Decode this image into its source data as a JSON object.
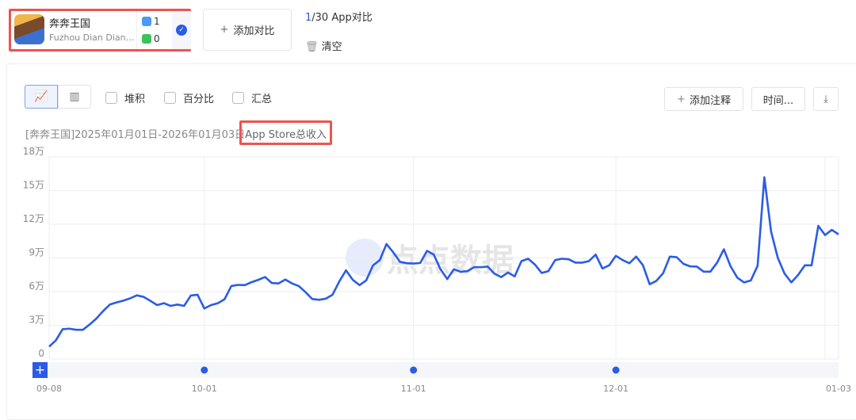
{
  "app": {
    "name": "奔奔王国",
    "developer": "Fuzhou Dian Dian Interactive",
    "ios_count": "1",
    "android_count": "0",
    "icon": "app-icon"
  },
  "header": {
    "add_compare": "添加对比",
    "count_current": "1",
    "count_rest": "/30 App对比",
    "clear": "清空"
  },
  "toolbar": {
    "stack": "堆积",
    "percent": "百分比",
    "summary": "汇总",
    "add_note": "添加注释",
    "time": "时间...",
    "line_icon": "line-chart-icon",
    "bar_icon": "bar-chart-icon",
    "download_icon": "download-icon"
  },
  "chart_title": {
    "prefix": "[奔奔王国]2025年01月01日-2026年01月03日",
    "metric": "App Store总收入"
  },
  "watermark": "点点数据",
  "colors": {
    "line": "#2b5ce6",
    "accent": "#2b5ce6",
    "highlight": "#ef5350"
  },
  "chart_data": {
    "type": "line",
    "ylim": [
      0,
      180000
    ],
    "yticks": [
      "0",
      "3万",
      "6万",
      "9万",
      "12万",
      "15万",
      "18万"
    ],
    "xtick_labels": [
      "09-08",
      "10-01",
      "11-01",
      "12-01",
      "01-03"
    ],
    "grid": true,
    "x": [
      "09-08",
      "09-09",
      "09-10",
      "09-11",
      "09-12",
      "09-13",
      "09-14",
      "09-15",
      "09-16",
      "09-17",
      "09-18",
      "09-19",
      "09-20",
      "09-21",
      "09-22",
      "09-23",
      "09-24",
      "09-25",
      "09-26",
      "09-27",
      "09-28",
      "09-29",
      "09-30",
      "10-01",
      "10-02",
      "10-03",
      "10-04",
      "10-05",
      "10-06",
      "10-07",
      "10-08",
      "10-09",
      "10-10",
      "10-11",
      "10-12",
      "10-13",
      "10-14",
      "10-15",
      "10-16",
      "10-17",
      "10-18",
      "10-19",
      "10-20",
      "10-21",
      "10-22",
      "10-23",
      "10-24",
      "10-25",
      "10-26",
      "10-27",
      "10-28",
      "10-29",
      "10-30",
      "10-31",
      "11-01",
      "11-02",
      "11-03",
      "11-04",
      "11-05",
      "11-06",
      "11-07",
      "11-08",
      "11-09",
      "11-10",
      "11-11",
      "11-12",
      "11-13",
      "11-14",
      "11-15",
      "11-16",
      "11-17",
      "11-18",
      "11-19",
      "11-20",
      "11-21",
      "11-22",
      "11-23",
      "11-24",
      "11-25",
      "11-26",
      "11-27",
      "11-28",
      "11-29",
      "11-30",
      "12-01",
      "12-02",
      "12-03",
      "12-04",
      "12-05",
      "12-06",
      "12-07",
      "12-08",
      "12-09",
      "12-10",
      "12-11",
      "12-12",
      "12-13",
      "12-14",
      "12-15",
      "12-16",
      "12-17",
      "12-18",
      "12-19",
      "12-20",
      "12-21",
      "12-22",
      "12-23",
      "12-24",
      "12-25",
      "12-26",
      "12-27",
      "12-28",
      "12-29",
      "12-30",
      "12-31",
      "01-01",
      "01-02",
      "01-03"
    ],
    "series": [
      {
        "values": [
          11000,
          16600,
          26500,
          27000,
          26000,
          26000,
          30700,
          36000,
          42700,
          48500,
          50400,
          52000,
          54000,
          56700,
          55300,
          51800,
          48000,
          49700,
          47300,
          48500,
          47300,
          56500,
          57200,
          45000,
          48000,
          49700,
          53200,
          65000,
          66000,
          65800,
          68400,
          70500,
          73000,
          67700,
          67300,
          70800,
          67300,
          65000,
          59500,
          53400,
          52700,
          53700,
          57200,
          69000,
          79000,
          70500,
          65800,
          70000,
          83400,
          88000,
          102400,
          95000,
          86500,
          85300,
          85000,
          85500,
          96300,
          93000,
          80000,
          71200,
          80000,
          77600,
          78300,
          81800,
          81800,
          82300,
          76000,
          72900,
          77000,
          73600,
          87200,
          89300,
          84100,
          76600,
          78300,
          88100,
          89300,
          88800,
          85800,
          85800,
          87200,
          93000,
          80600,
          83400,
          91900,
          88100,
          85300,
          91200,
          83600,
          66600,
          69600,
          76400,
          91200,
          90700,
          84800,
          82500,
          82300,
          77800,
          77800,
          85800,
          97700,
          82500,
          72400,
          68200,
          70000,
          83000,
          161900,
          113400,
          90000,
          76000,
          68200,
          74800,
          83400,
          83400,
          118600,
          110400,
          115000,
          111000
        ]
      }
    ]
  }
}
